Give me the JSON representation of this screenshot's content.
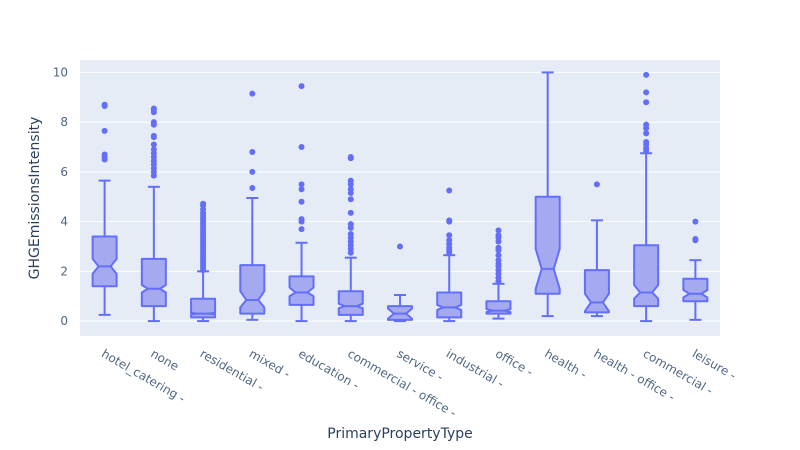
{
  "chart_data": {
    "type": "box",
    "notched": true,
    "xlabel": "PrimaryPropertyType",
    "ylabel": "GHGEmissionsIntensity",
    "ylim": [
      -0.6,
      10.5
    ],
    "yticks": [
      0,
      2,
      4,
      6,
      8,
      10
    ],
    "grid": true,
    "plot_background": "#e5ecf6",
    "grid_color": "#ffffff",
    "box_line_color": "#636efa",
    "box_fill_color": "#a5aaf0",
    "tick_label_color": "#506784",
    "axis_title_color": "#2a3f5f",
    "categories": [
      "hotel_catering -",
      "none",
      "residential -",
      "mixed -",
      "education -",
      "commercial - office -",
      "service -",
      "industrial -",
      "office -",
      "health -",
      "health - office -",
      "commercial -",
      "leisure -"
    ],
    "boxes": [
      {
        "min": 0.25,
        "q1": 1.4,
        "median": 2.2,
        "q3": 3.4,
        "max": 5.65,
        "notch": [
          1.9,
          2.5
        ],
        "outliers": [
          6.5,
          6.6,
          6.7,
          7.65,
          8.65,
          8.7
        ]
      },
      {
        "min": 0.0,
        "q1": 0.6,
        "median": 1.3,
        "q3": 2.5,
        "max": 5.4,
        "notch": [
          1.15,
          1.45
        ],
        "outliers": [
          5.85,
          6.0,
          6.15,
          6.3,
          6.45,
          6.6,
          6.75,
          6.9,
          7.1,
          7.4,
          7.45,
          7.9,
          8.0,
          8.4,
          8.5,
          8.55
        ]
      },
      {
        "min": 0.0,
        "q1": 0.15,
        "median": 0.3,
        "q3": 0.9,
        "max": 2.0,
        "notch": [
          0.27,
          0.33
        ],
        "outliers": [
          2.05,
          2.15,
          2.25,
          2.35,
          2.45,
          2.55,
          2.65,
          2.75,
          2.85,
          2.95,
          3.05,
          3.15,
          3.25,
          3.35,
          3.45,
          3.55,
          3.65,
          3.75,
          3.85,
          3.95,
          4.05,
          4.15,
          4.25,
          4.35,
          4.5,
          4.65,
          4.72
        ]
      },
      {
        "min": 0.05,
        "q1": 0.3,
        "median": 0.85,
        "q3": 2.25,
        "max": 4.95,
        "notch": [
          0.55,
          1.2
        ],
        "outliers": [
          5.35,
          6.0,
          6.8,
          9.15
        ]
      },
      {
        "min": 0.0,
        "q1": 0.65,
        "median": 1.15,
        "q3": 1.8,
        "max": 3.15,
        "notch": [
          1.0,
          1.35
        ],
        "outliers": [
          3.7,
          4.0,
          4.1,
          4.8,
          5.3,
          5.5,
          7.0,
          9.45
        ]
      },
      {
        "min": 0.0,
        "q1": 0.25,
        "median": 0.6,
        "q3": 1.2,
        "max": 2.55,
        "notch": [
          0.52,
          0.7
        ],
        "outliers": [
          2.75,
          2.9,
          3.05,
          3.2,
          3.35,
          3.5,
          3.75,
          3.9,
          4.35,
          4.9,
          5.15,
          5.3,
          5.5,
          5.65,
          6.55,
          6.6
        ]
      },
      {
        "min": 0.0,
        "q1": 0.05,
        "median": 0.3,
        "q3": 0.6,
        "max": 1.05,
        "notch": [
          0.1,
          0.5
        ],
        "outliers": [
          3.0
        ]
      },
      {
        "min": 0.0,
        "q1": 0.15,
        "median": 0.55,
        "q3": 1.15,
        "max": 2.65,
        "notch": [
          0.45,
          0.65
        ],
        "outliers": [
          2.75,
          2.85,
          2.95,
          3.1,
          3.25,
          3.45,
          4.0,
          4.05,
          5.25
        ]
      },
      {
        "min": 0.1,
        "q1": 0.3,
        "median": 0.42,
        "q3": 0.8,
        "max": 1.5,
        "notch": [
          0.36,
          0.48
        ],
        "outliers": [
          1.6,
          1.75,
          1.9,
          2.05,
          2.2,
          2.3,
          2.45,
          2.65,
          2.85,
          2.95,
          3.2,
          3.35,
          3.45,
          3.65
        ]
      },
      {
        "min": 0.2,
        "q1": 1.1,
        "median": 2.1,
        "q3": 5.0,
        "max": 10.0,
        "notch": [
          1.3,
          2.9
        ],
        "outliers": []
      },
      {
        "min": 0.2,
        "q1": 0.35,
        "median": 0.75,
        "q3": 2.05,
        "max": 4.05,
        "notch": [
          0.4,
          1.1
        ],
        "outliers": [
          5.5
        ]
      },
      {
        "min": 0.0,
        "q1": 0.6,
        "median": 1.15,
        "q3": 3.05,
        "max": 6.75,
        "notch": [
          0.9,
          1.45
        ],
        "outliers": [
          6.85,
          6.95,
          7.1,
          7.2,
          7.55,
          7.75,
          7.9,
          8.8,
          9.2,
          9.9
        ]
      },
      {
        "min": 0.05,
        "q1": 0.8,
        "median": 1.1,
        "q3": 1.7,
        "max": 2.45,
        "notch": [
          0.95,
          1.25
        ],
        "outliers": [
          3.25,
          3.3,
          4.0
        ]
      }
    ]
  }
}
